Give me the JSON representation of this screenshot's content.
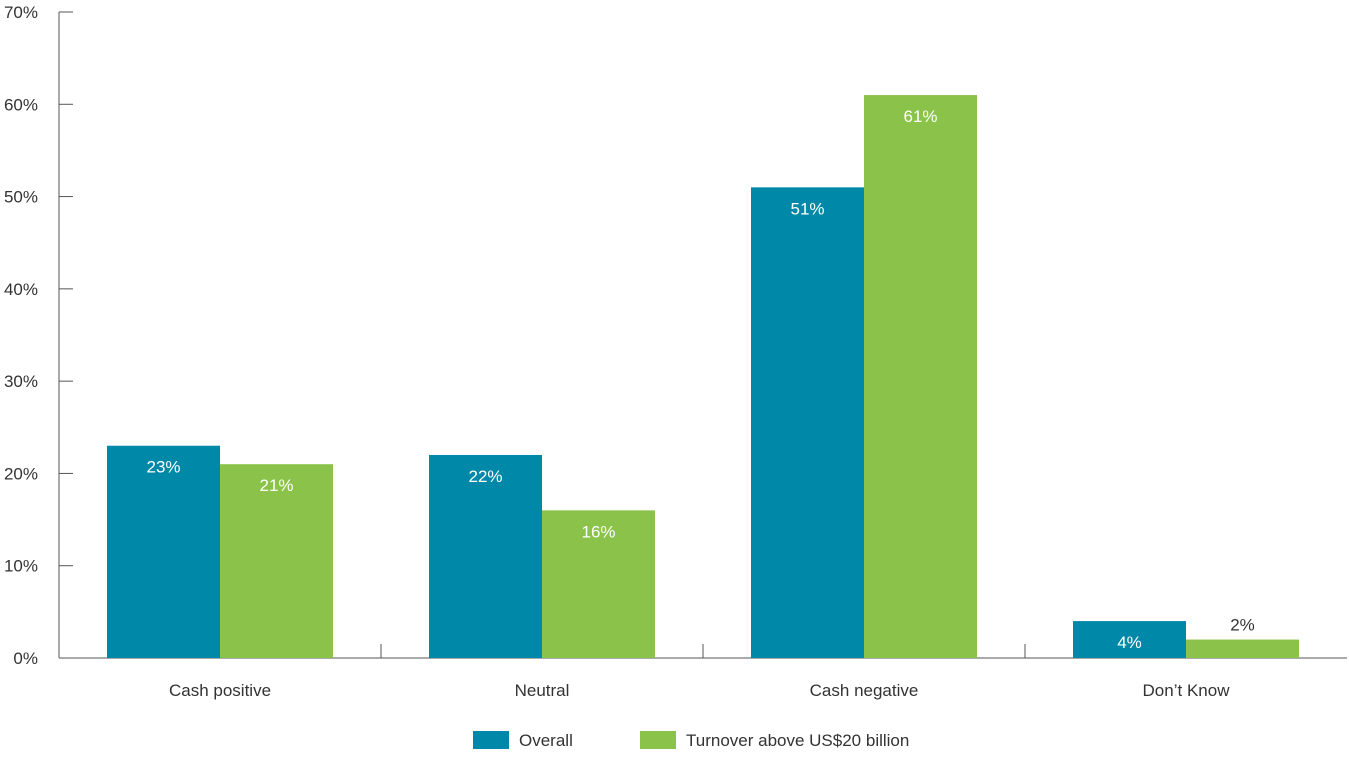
{
  "chart_data": {
    "type": "bar",
    "title": "",
    "xlabel": "",
    "ylabel": "",
    "ylim": [
      0,
      70
    ],
    "yticks": [
      0,
      10,
      20,
      30,
      40,
      50,
      60,
      70
    ],
    "ytick_labels": [
      "0%",
      "10%",
      "20%",
      "30%",
      "40%",
      "50%",
      "60%",
      "70%"
    ],
    "categories": [
      "Cash positive",
      "Neutral",
      "Cash negative",
      "Don’t Know"
    ],
    "series": [
      {
        "name": "Overall",
        "color": "#0088A8",
        "values": [
          23,
          22,
          51,
          4
        ],
        "labels": [
          "23%",
          "22%",
          "51%",
          "4%"
        ]
      },
      {
        "name": "Turnover above US$20 billion",
        "color": "#8BC34A",
        "values": [
          21,
          16,
          61,
          2
        ],
        "labels": [
          "21%",
          "16%",
          "61%",
          "2%"
        ]
      }
    ],
    "legend": "bottom-center",
    "grid": false
  }
}
